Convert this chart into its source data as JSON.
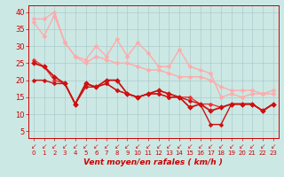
{
  "xlabel": "Vent moyen/en rafales ( km/h )",
  "bg_color": "#cce8e4",
  "grid_color": "#aacccc",
  "x": [
    0,
    1,
    2,
    3,
    4,
    5,
    6,
    7,
    8,
    9,
    10,
    11,
    12,
    13,
    14,
    15,
    16,
    17,
    18,
    19,
    20,
    21,
    22,
    23
  ],
  "lines": [
    {
      "y": [
        37,
        33,
        39,
        31,
        27,
        25,
        27,
        26,
        25,
        25,
        24,
        23,
        23,
        22,
        21,
        21,
        21,
        20,
        18,
        17,
        17,
        17,
        16,
        17
      ],
      "color": "#ffaaaa",
      "lw": 1.0,
      "ms": 2.5
    },
    {
      "y": [
        38,
        38,
        40,
        31,
        27,
        26,
        30,
        27,
        32,
        27,
        31,
        28,
        24,
        24,
        29,
        24,
        23,
        22,
        15,
        16,
        15,
        16,
        16,
        16
      ],
      "color": "#ffaaaa",
      "lw": 1.0,
      "ms": 2.5
    },
    {
      "y": [
        26,
        24,
        20,
        19,
        13,
        19,
        18,
        19,
        17,
        16,
        15,
        16,
        16,
        15,
        15,
        15,
        13,
        13,
        12,
        13,
        13,
        13,
        11,
        13
      ],
      "color": "#ee3333",
      "lw": 1.0,
      "ms": 2.5
    },
    {
      "y": [
        20,
        20,
        19,
        19,
        13,
        18,
        18,
        19,
        17,
        16,
        15,
        16,
        16,
        15,
        15,
        14,
        13,
        7,
        7,
        13,
        13,
        13,
        11,
        13
      ],
      "color": "#cc1111",
      "lw": 1.0,
      "ms": 2.5
    },
    {
      "y": [
        25,
        24,
        21,
        19,
        13,
        19,
        18,
        20,
        20,
        16,
        15,
        16,
        17,
        16,
        15,
        12,
        13,
        11,
        12,
        13,
        13,
        13,
        11,
        13
      ],
      "color": "#cc1111",
      "lw": 1.3,
      "ms": 3.0
    }
  ],
  "xlim": [
    -0.5,
    23.5
  ],
  "ylim": [
    3,
    42
  ],
  "yticks": [
    5,
    10,
    15,
    20,
    25,
    30,
    35,
    40
  ],
  "xtick_labels": [
    "0",
    "1",
    "2",
    "3",
    "4",
    "5",
    "6",
    "7",
    "8",
    "9",
    "10",
    "11",
    "12",
    "13",
    "14",
    "15",
    "16",
    "17",
    "18",
    "19",
    "20",
    "21",
    "22",
    "23"
  ],
  "tick_color": "#cc0000",
  "label_color": "#cc0000",
  "arrow_color": "#cc2222"
}
